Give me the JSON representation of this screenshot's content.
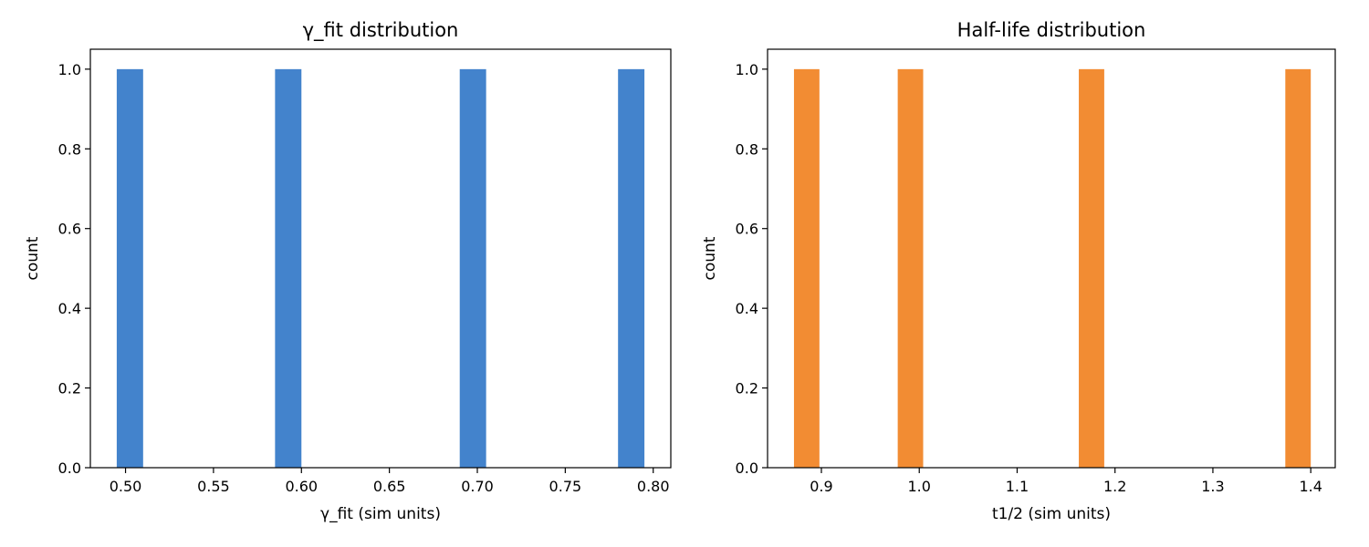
{
  "chart_data": [
    {
      "type": "bar",
      "title": "γ_fit distribution",
      "xlabel": "γ_fit (sim units)",
      "ylabel": "count",
      "xlim": [
        0.48,
        0.81
      ],
      "ylim": [
        0.0,
        1.05
      ],
      "xticks": [
        0.5,
        0.55,
        0.6,
        0.65,
        0.7,
        0.75,
        0.8
      ],
      "xtick_labels": [
        "0.50",
        "0.55",
        "0.60",
        "0.65",
        "0.70",
        "0.75",
        "0.80"
      ],
      "yticks": [
        0.0,
        0.2,
        0.4,
        0.6,
        0.8,
        1.0
      ],
      "ytick_labels": [
        "0.0",
        "0.2",
        "0.4",
        "0.6",
        "0.8",
        "1.0"
      ],
      "bins": [
        {
          "x0": 0.495,
          "x1": 0.51,
          "count": 1
        },
        {
          "x0": 0.585,
          "x1": 0.6,
          "count": 1
        },
        {
          "x0": 0.69,
          "x1": 0.705,
          "count": 1
        },
        {
          "x0": 0.78,
          "x1": 0.795,
          "count": 1
        }
      ],
      "color": "#4383cc",
      "grid": false
    },
    {
      "type": "bar",
      "title": "Half-life distribution",
      "xlabel": "t1/2 (sim units)",
      "ylabel": "count",
      "xlim": [
        0.845,
        1.425
      ],
      "ylim": [
        0.0,
        1.05
      ],
      "xticks": [
        0.9,
        1.0,
        1.1,
        1.2,
        1.3,
        1.4
      ],
      "xtick_labels": [
        "0.9",
        "1.0",
        "1.1",
        "1.2",
        "1.3",
        "1.4"
      ],
      "yticks": [
        0.0,
        0.2,
        0.4,
        0.6,
        0.8,
        1.0
      ],
      "ytick_labels": [
        "0.0",
        "0.2",
        "0.4",
        "0.6",
        "0.8",
        "1.0"
      ],
      "bins": [
        {
          "x0": 0.872,
          "x1": 0.898,
          "count": 1
        },
        {
          "x0": 0.978,
          "x1": 1.004,
          "count": 1
        },
        {
          "x0": 1.163,
          "x1": 1.189,
          "count": 1
        },
        {
          "x0": 1.374,
          "x1": 1.4,
          "count": 1
        }
      ],
      "color": "#f28c33",
      "grid": false
    }
  ]
}
